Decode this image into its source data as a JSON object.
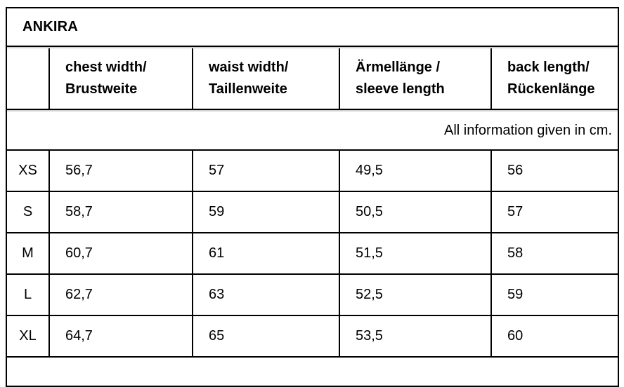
{
  "table": {
    "title": "ANKIRA",
    "unit_note": "All information given in cm.",
    "columns": [
      {
        "line1": "chest width/",
        "line2": "Brustweite"
      },
      {
        "line1": "waist width/",
        "line2": "Taillenweite"
      },
      {
        "line1": "Ärmellänge /",
        "line2": "sleeve length"
      },
      {
        "line1": "back length/",
        "line2": "Rückenlänge"
      }
    ],
    "rows": [
      {
        "size": "XS",
        "values": [
          "56,7",
          "57",
          "49,5",
          "56"
        ]
      },
      {
        "size": "S",
        "values": [
          "58,7",
          "59",
          "50,5",
          "57"
        ]
      },
      {
        "size": "M",
        "values": [
          "60,7",
          "61",
          "51,5",
          "58"
        ]
      },
      {
        "size": "L",
        "values": [
          "62,7",
          "63",
          "52,5",
          "59"
        ]
      },
      {
        "size": "XL",
        "values": [
          "64,7",
          "65",
          "53,5",
          "60"
        ]
      }
    ]
  },
  "colors": {
    "border": "#000000",
    "border_shadow": "#d2d2d2",
    "text": "#000000",
    "background": "#ffffff"
  }
}
